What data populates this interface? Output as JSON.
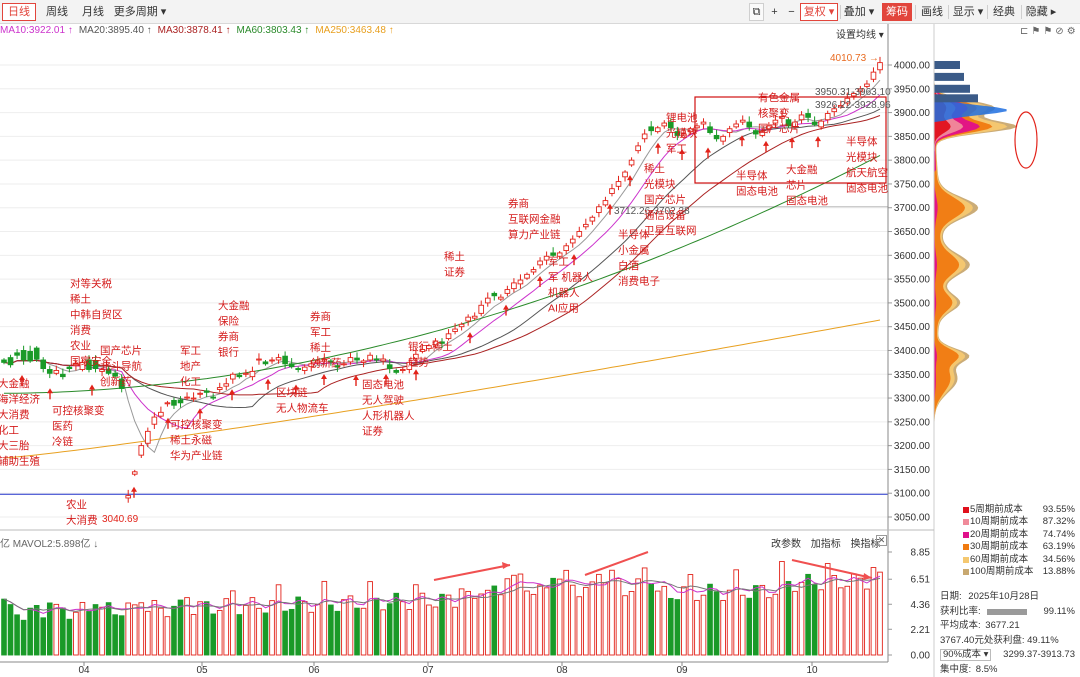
{
  "toolbar": {
    "left": [
      "日线",
      "周线",
      "月线",
      "更多周期 ▾"
    ],
    "right_icons": [
      "⧉",
      "+",
      "−"
    ],
    "restore": "复权 ▾",
    "overlay": "叠加 ▾",
    "chips": "筹码",
    "right_items": [
      "画线",
      "显示 ▾",
      "经典",
      "隐藏 ▸"
    ]
  },
  "ma_legend": [
    {
      "label": "MA10:3922.01 ↑",
      "color": "#cc33cc"
    },
    {
      "label": "MA20:3895.40 ↑",
      "color": "#555555"
    },
    {
      "label": "MA30:3878.41 ↑",
      "color": "#aa2222"
    },
    {
      "label": "MA60:3803.43 ↑",
      "color": "#2a8a2a"
    },
    {
      "label": "MA250:3463.48 ↑",
      "color": "#e8a020"
    }
  ],
  "ma_settings": "设置均线 ▾",
  "price_axis": [
    "4000.00",
    "3950.00",
    "3900.00",
    "3850.00",
    "3800.00",
    "3750.00",
    "3700.00",
    "3650.00",
    "3600.00",
    "3550.00",
    "3500.00",
    "3450.00",
    "3400.00",
    "3350.00",
    "3300.00",
    "3250.00",
    "3200.00",
    "3150.00",
    "3100.00",
    "3050.00"
  ],
  "vol_axis": [
    "8.85",
    "6.51",
    "4.36",
    "2.21",
    "0.00"
  ],
  "time_axis": [
    "04",
    "05",
    "06",
    "07",
    "08",
    "09",
    "10"
  ],
  "price_notes": {
    "high": "4010.73",
    "low": "3040.69",
    "note_top": "3950.31-3963.10",
    "note_mid": "3926.22-3928.96",
    "note_aug": "3712.26-3702.38"
  },
  "volume_legend": "亿  MAVOL2:5.898亿 ↓",
  "volume_tools": [
    "改参数",
    "加指标",
    "换指标"
  ],
  "annotations": [
    {
      "text": "对等关税\n稀土\n中韩自贸区\n消费\n农业\n国家安全",
      "tone": "red"
    },
    {
      "text": "国产芯片\n北斗导航\n创新药",
      "tone": "red"
    },
    {
      "text": "大金融\n海洋经济\n大消费\n化工\n大三胎\n辅助生殖",
      "tone": "red"
    },
    {
      "text": "可控核聚变\n医药\n冷链",
      "tone": "red"
    },
    {
      "text": "农业\n大消费",
      "tone": "red"
    },
    {
      "text": "可控核聚变\n稀土永磁\n华为产业链",
      "tone": "red"
    },
    {
      "text": "军工\n地产\n化工",
      "tone": "red"
    },
    {
      "text": "大金融\n保险\n券商\n银行",
      "tone": "red"
    },
    {
      "text": "券商\n军工\n稀土\n创新药",
      "tone": "red"
    },
    {
      "text": "区块链\n无人物流车",
      "tone": "red"
    },
    {
      "text": "银行 稀土\n趋势",
      "tone": "red"
    },
    {
      "text": "固态电池\n无人驾驶\n人形机器人\n证券",
      "tone": "red"
    },
    {
      "text": "稀土\n证券",
      "tone": "red"
    },
    {
      "text": "券商\n互联网金融\n算力产业链",
      "tone": "red"
    },
    {
      "text": "军工\n军 机器人\n机器人\nAI应用",
      "tone": "red"
    },
    {
      "text": "半导体\n小金属\n白酒\n消费电子",
      "tone": "red"
    },
    {
      "text": "稀土\n光模块\n国产芯片\n通信设备\n卫星互联网",
      "tone": "red"
    },
    {
      "text": "锂电池\n光模块\n军工",
      "tone": "red"
    },
    {
      "text": "半导体\n固态电池",
      "tone": "red"
    },
    {
      "text": "有色金属\n核聚变\n国产芯片",
      "tone": "red"
    },
    {
      "text": "大金融\n芯片\n固态电池",
      "tone": "red"
    },
    {
      "text": "半导体\n光模块\n航天航空\n固态电池",
      "tone": "red"
    }
  ],
  "cost_legend": [
    {
      "label": "5周期前成本",
      "value": "93.55%",
      "color": "#e0101c"
    },
    {
      "label": "10周期前成本",
      "value": "87.32%",
      "color": "#f08a9a"
    },
    {
      "label": "20周期前成本",
      "value": "74.74%",
      "color": "#e0108a"
    },
    {
      "label": "30周期前成本",
      "value": "63.19%",
      "color": "#f07a10"
    },
    {
      "label": "60周期前成本",
      "value": "34.56%",
      "color": "#f5c870"
    },
    {
      "label": "100周期前成本",
      "value": "13.88%",
      "color": "#c8a870"
    }
  ],
  "stats": {
    "date_label": "日期:",
    "date": "2025年10月28日",
    "profit_label": "获利比率:",
    "profit": "99.11%",
    "avg_label": "平均成本:",
    "avg": "3677.21",
    "profit_at_label": "3767.40元处获利盘:",
    "profit_at": "49.11%",
    "range_sel": "90%成本 ▾",
    "range": "3299.37-3913.73",
    "concentration_label": "集中度:",
    "concentration": "8.5%"
  },
  "chart_data": {
    "type": "candlestick",
    "title": "",
    "xlabel": "",
    "ylabel": "",
    "ylim": [
      3040,
      4030
    ],
    "categories": [
      "04",
      "05",
      "06",
      "07",
      "08",
      "09",
      "10"
    ],
    "price_path": [
      [
        3380,
        3375
      ],
      [
        3385,
        3370
      ],
      [
        3395,
        3390
      ],
      [
        3400,
        3380
      ],
      [
        3398,
        3378
      ],
      [
        3405,
        3382
      ],
      [
        3380,
        3362
      ],
      [
        3360,
        3352
      ],
      [
        3352,
        3358
      ],
      [
        3350,
        3345
      ],
      [
        3365,
        3362
      ],
      [
        3368,
        3372
      ],
      [
        3360,
        3375
      ],
      [
        3380,
        3360
      ],
      [
        3378,
        3362
      ],
      [
        3356,
        3360
      ],
      [
        3360,
        3352
      ],
      [
        3352,
        3346
      ],
      [
        3340,
        3320
      ],
      [
        3090,
        3095
      ],
      [
        3140,
        3145
      ],
      [
        3180,
        3200
      ],
      [
        3205,
        3230
      ],
      [
        3245,
        3260
      ],
      [
        3262,
        3270
      ],
      [
        3288,
        3290
      ],
      [
        3295,
        3285
      ],
      [
        3296,
        3290
      ],
      [
        3300,
        3302
      ],
      [
        3298,
        3300
      ],
      [
        3308,
        3310
      ],
      [
        3315,
        3312
      ],
      [
        3302,
        3300
      ],
      [
        3318,
        3322
      ],
      [
        3325,
        3330
      ],
      [
        3340,
        3350
      ],
      [
        3348,
        3345
      ],
      [
        3350,
        3352
      ],
      [
        3345,
        3356
      ],
      [
        3380,
        3382
      ],
      [
        3376,
        3372
      ],
      [
        3378,
        3380
      ],
      [
        3380,
        3385
      ],
      [
        3388,
        3372
      ],
      [
        3372,
        3366
      ],
      [
        3362,
        3360
      ],
      [
        3358,
        3365
      ],
      [
        3366,
        3372
      ],
      [
        3374,
        3378
      ],
      [
        3380,
        3382
      ],
      [
        3378,
        3376
      ],
      [
        3368,
        3365
      ],
      [
        3370,
        3372
      ],
      [
        3376,
        3385
      ],
      [
        3384,
        3380
      ],
      [
        3375,
        3378
      ],
      [
        3380,
        3390
      ],
      [
        3382,
        3380
      ],
      [
        3378,
        3382
      ],
      [
        3370,
        3362
      ],
      [
        3358,
        3354
      ],
      [
        3358,
        3360
      ],
      [
        3360,
        3375
      ],
      [
        3382,
        3392
      ],
      [
        3398,
        3402
      ],
      [
        3404,
        3410
      ],
      [
        3412,
        3420
      ],
      [
        3418,
        3415
      ],
      [
        3425,
        3435
      ],
      [
        3440,
        3445
      ],
      [
        3450,
        3455
      ],
      [
        3462,
        3470
      ],
      [
        3468,
        3472
      ],
      [
        3478,
        3495
      ],
      [
        3500,
        3510
      ],
      [
        3520,
        3515
      ],
      [
        3508,
        3512
      ],
      [
        3520,
        3528
      ],
      [
        3530,
        3542
      ],
      [
        3540,
        3548
      ],
      [
        3552,
        3560
      ],
      [
        3565,
        3570
      ],
      [
        3580,
        3588
      ],
      [
        3590,
        3598
      ],
      [
        3605,
        3600
      ],
      [
        3598,
        3605
      ],
      [
        3610,
        3620
      ],
      [
        3626,
        3634
      ],
      [
        3640,
        3650
      ],
      [
        3660,
        3665
      ],
      [
        3672,
        3680
      ],
      [
        3690,
        3702
      ],
      [
        3706,
        3715
      ],
      [
        3730,
        3740
      ],
      [
        3745,
        3755
      ],
      [
        3765,
        3775
      ],
      [
        3790,
        3800
      ],
      [
        3820,
        3830
      ],
      [
        3845,
        3855
      ],
      [
        3870,
        3862
      ],
      [
        3860,
        3868
      ],
      [
        3872,
        3878
      ],
      [
        3880,
        3868
      ],
      [
        3860,
        3852
      ],
      [
        3848,
        3855
      ],
      [
        3860,
        3866
      ],
      [
        3868,
        3872
      ],
      [
        3876,
        3880
      ],
      [
        3870,
        3858
      ],
      [
        3852,
        3845
      ],
      [
        3840,
        3850
      ],
      [
        3858,
        3866
      ],
      [
        3870,
        3876
      ],
      [
        3880,
        3884
      ],
      [
        3880,
        3870
      ],
      [
        3862,
        3855
      ],
      [
        3852,
        3860
      ],
      [
        3866,
        3872
      ],
      [
        3878,
        3884
      ],
      [
        3888,
        3892
      ],
      [
        3885,
        3872
      ],
      [
        3870,
        3880
      ],
      [
        3885,
        3895
      ],
      [
        3898,
        3890
      ],
      [
        3880,
        3875
      ],
      [
        3870,
        3882
      ],
      [
        3885,
        3898
      ],
      [
        3902,
        3908
      ],
      [
        3912,
        3915
      ],
      [
        3920,
        3930
      ],
      [
        3935,
        3940
      ],
      [
        3945,
        3950
      ],
      [
        3955,
        3960
      ],
      [
        3970,
        3985
      ],
      [
        3990,
        4005
      ]
    ]
  }
}
